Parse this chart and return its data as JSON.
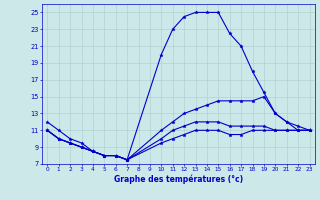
{
  "xlabel": "Graphe des températures (°c)",
  "background_color": "#cce8e8",
  "plot_bg_color": "#cce8e8",
  "grid_color": "#aacccc",
  "line_color": "#0000cc",
  "xlim": [
    -0.5,
    23.5
  ],
  "ylim": [
    7,
    26
  ],
  "xticks": [
    0,
    1,
    2,
    3,
    4,
    5,
    6,
    7,
    8,
    9,
    10,
    11,
    12,
    13,
    14,
    15,
    16,
    17,
    18,
    19,
    20,
    21,
    22,
    23
  ],
  "yticks": [
    7,
    9,
    11,
    13,
    15,
    17,
    19,
    21,
    23,
    25
  ],
  "series": [
    {
      "x": [
        0,
        1,
        2,
        3,
        4,
        5,
        6,
        7,
        10,
        11,
        12,
        13,
        14,
        15,
        16,
        17,
        18,
        19,
        20,
        21,
        22,
        23
      ],
      "y": [
        12,
        11,
        10,
        9.5,
        8.5,
        8,
        8,
        7.5,
        20,
        23,
        24.5,
        25,
        25,
        25,
        22.5,
        21,
        18,
        15.5,
        13,
        12,
        11,
        11
      ]
    },
    {
      "x": [
        0,
        1,
        2,
        3,
        4,
        5,
        6,
        7,
        10,
        11,
        12,
        13,
        14,
        15,
        16,
        17,
        18,
        19,
        20,
        21,
        22,
        23
      ],
      "y": [
        11,
        10,
        9.5,
        9,
        8.5,
        8,
        8,
        7.5,
        11,
        12,
        13,
        13.5,
        14,
        14.5,
        14.5,
        14.5,
        14.5,
        15,
        13,
        12,
        11.5,
        11
      ]
    },
    {
      "x": [
        0,
        1,
        2,
        3,
        4,
        5,
        6,
        7,
        10,
        11,
        12,
        13,
        14,
        15,
        16,
        17,
        18,
        19,
        20,
        21,
        22,
        23
      ],
      "y": [
        11,
        10,
        9.5,
        9,
        8.5,
        8,
        8,
        7.5,
        10,
        11,
        11.5,
        12,
        12,
        12,
        11.5,
        11.5,
        11.5,
        11.5,
        11,
        11,
        11,
        11
      ]
    },
    {
      "x": [
        0,
        1,
        2,
        3,
        4,
        5,
        6,
        7,
        10,
        11,
        12,
        13,
        14,
        15,
        16,
        17,
        18,
        19,
        20,
        21,
        22,
        23
      ],
      "y": [
        11,
        10,
        9.5,
        9,
        8.5,
        8,
        8,
        7.5,
        9.5,
        10,
        10.5,
        11,
        11,
        11,
        10.5,
        10.5,
        11,
        11,
        11,
        11,
        11,
        11
      ]
    }
  ]
}
